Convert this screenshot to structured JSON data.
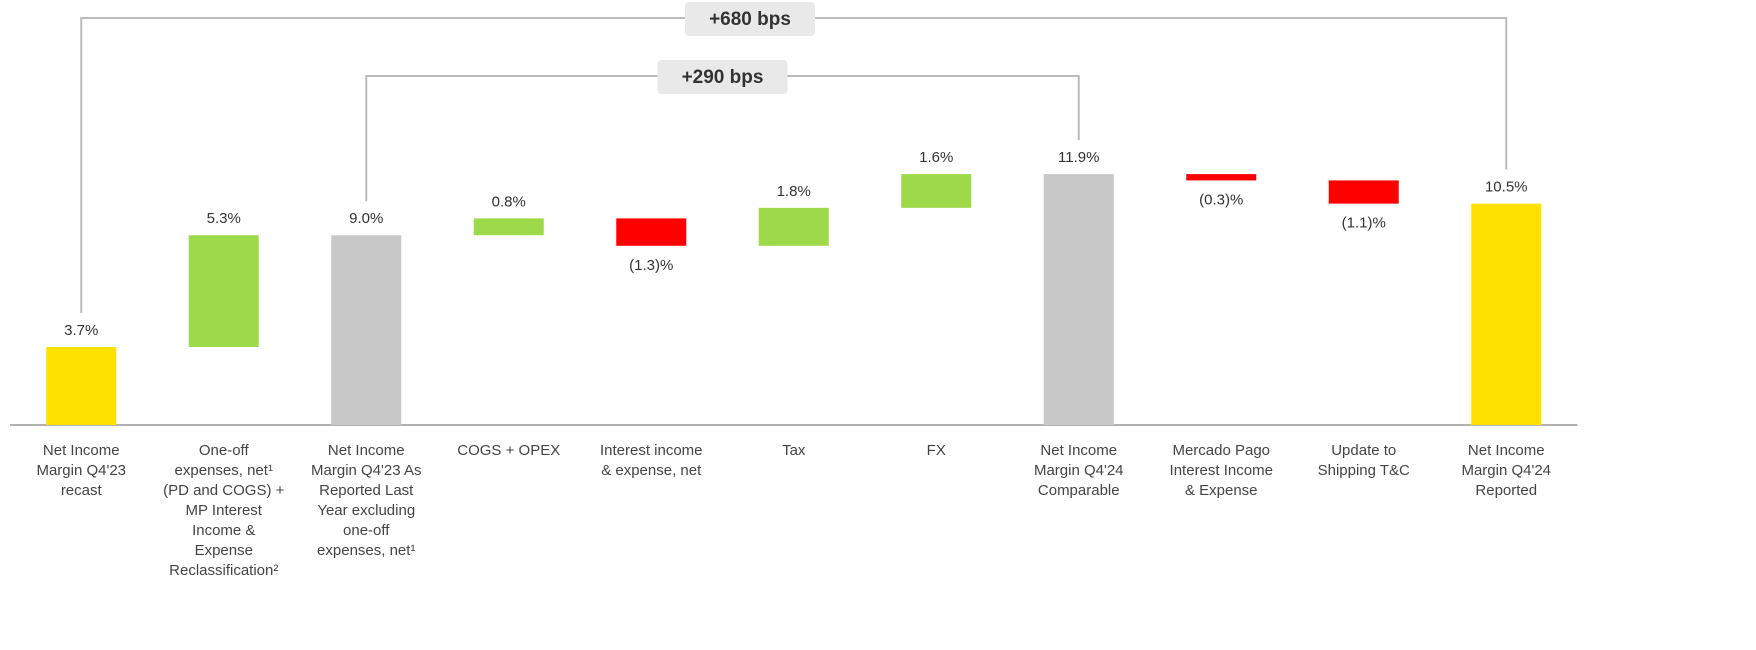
{
  "chart_data": {
    "type": "waterfall",
    "categories": [
      "Net Income\nMargin Q4'23\nrecast",
      "One-off\nexpenses, net¹\n(PD and COGS) +\nMP Interest\nIncome &\nExpense\nReclassification²",
      "Net Income\nMargin Q4'23 As\nReported Last\nYear excluding\none-off\nexpenses, net¹",
      "COGS + OPEX",
      "Interest income\n& expense, net",
      "Tax",
      "FX",
      "Net Income\nMargin Q4'24\nComparable",
      "Mercado Pago\nInterest Income\n& Expense",
      "Update to\nShipping T&C",
      "Net Income\nMargin Q4'24\nReported"
    ],
    "values": [
      3.7,
      5.3,
      9.0,
      0.8,
      -1.3,
      1.8,
      1.6,
      11.9,
      -0.3,
      -1.1,
      10.5
    ],
    "value_labels": [
      "3.7%",
      "5.3%",
      "9.0%",
      "0.8%",
      "(1.3)%",
      "1.8%",
      "1.6%",
      "11.9%",
      "(0.3)%",
      "(1.1)%",
      "10.5%"
    ],
    "measure": [
      "absolute",
      "relative",
      "absolute",
      "relative",
      "relative",
      "relative",
      "relative",
      "absolute",
      "relative",
      "relative",
      "absolute"
    ],
    "colors": [
      "#ffe100",
      "#9ed94a",
      "#c8c8c8",
      "#9ed94a",
      "#ff0000",
      "#9ed94a",
      "#9ed94a",
      "#c8c8c8",
      "#ff0000",
      "#ff0000",
      "#ffe100"
    ],
    "ylim": [
      0,
      12
    ],
    "annotations": [
      {
        "text": "+680 bps",
        "between": [
          0,
          10
        ]
      },
      {
        "text": "+290 bps",
        "between": [
          2,
          7
        ]
      }
    ]
  }
}
